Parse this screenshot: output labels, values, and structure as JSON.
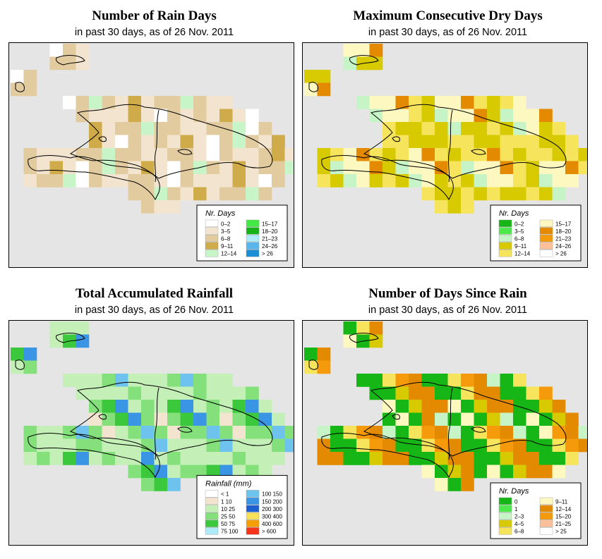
{
  "panels": [
    {
      "id": "rain-days",
      "title": "Number of Rain Days",
      "subtitle": "in past 30 days, as of  26 Nov. 2011",
      "legend": {
        "title": "Nr. Days",
        "entries": [
          {
            "label": "0–2",
            "color": "#ffffff"
          },
          {
            "label": "3–5",
            "color": "#f3e4cf"
          },
          {
            "label": "6–8",
            "color": "#e2cc9f"
          },
          {
            "label": "9–11",
            "color": "#cfab4a"
          },
          {
            "label": "12–14",
            "color": "#c8f5c8"
          },
          {
            "label": "15–17",
            "color": "#44ea44"
          },
          {
            "label": "18–20",
            "color": "#15b315"
          },
          {
            "label": "21–23",
            "color": "#aeeaf7"
          },
          {
            "label": "24–26",
            "color": "#58b6ec"
          },
          {
            "label": "> 26",
            "color": "#1a8fd6"
          }
        ]
      }
    },
    {
      "id": "max-dry-days",
      "title": "Maximum Consecutive Dry Days",
      "subtitle": "in past 30 days, as of  26 Nov. 2011",
      "legend": {
        "title": "Nr. Days",
        "entries": [
          {
            "label": "0–2",
            "color": "#17b617"
          },
          {
            "label": "3–5",
            "color": "#4ce84c"
          },
          {
            "label": "6–8",
            "color": "#c6f4c6"
          },
          {
            "label": "9–11",
            "color": "#d7ca00"
          },
          {
            "label": "12–14",
            "color": "#f6e45c"
          },
          {
            "label": "15–17",
            "color": "#fdf8c0"
          },
          {
            "label": "18–20",
            "color": "#e38a00"
          },
          {
            "label": "21–23",
            "color": "#f59a0a"
          },
          {
            "label": "24–26",
            "color": "#fbbf9a"
          },
          {
            "label": "> 26",
            "color": "#ffffff"
          }
        ]
      }
    },
    {
      "id": "total-rainfall",
      "title": "Total Accumulated Rainfall",
      "subtitle": "in past 30 days, as of  26 Nov. 2011",
      "legend": {
        "title": "Rainfall (mm)",
        "entries": [
          {
            "label": "< 1",
            "color": "#ffffff"
          },
          {
            "label": "1    10",
            "color": "#f3e4cf"
          },
          {
            "label": "10    25",
            "color": "#c4f0b8"
          },
          {
            "label": "25    50",
            "color": "#84e07a"
          },
          {
            "label": "50    75",
            "color": "#3cc83c"
          },
          {
            "label": "75   100",
            "color": "#aeeaf7"
          },
          {
            "label": "100   150",
            "color": "#6ec3ee"
          },
          {
            "label": "150   200",
            "color": "#3a95e4"
          },
          {
            "label": "200   300",
            "color": "#1e5fd0"
          },
          {
            "label": "300   400",
            "color": "#f7e257"
          },
          {
            "label": "400   600",
            "color": "#f5a000"
          },
          {
            "label": "> 600",
            "color": "#f5341a"
          }
        ]
      }
    },
    {
      "id": "days-since-rain",
      "title": "Number of Days Since Rain",
      "subtitle": "in past 30 days, as of  26 Nov. 2011",
      "legend": {
        "title": "Nr. Days",
        "entries": [
          {
            "label": "0",
            "color": "#17b617"
          },
          {
            "label": "1",
            "color": "#4ce84c"
          },
          {
            "label": "2–3",
            "color": "#c6f4c6"
          },
          {
            "label": "4–5",
            "color": "#d7ca00"
          },
          {
            "label": "6–8",
            "color": "#f6e45c"
          },
          {
            "label": "9–11",
            "color": "#fdf8c0"
          },
          {
            "label": "12–14",
            "color": "#e38a00"
          },
          {
            "label": "15–20",
            "color": "#f59a0a"
          },
          {
            "label": "21–25",
            "color": "#fbbf9a"
          },
          {
            "label": "> 25",
            "color": "#ffffff"
          }
        ]
      }
    }
  ]
}
